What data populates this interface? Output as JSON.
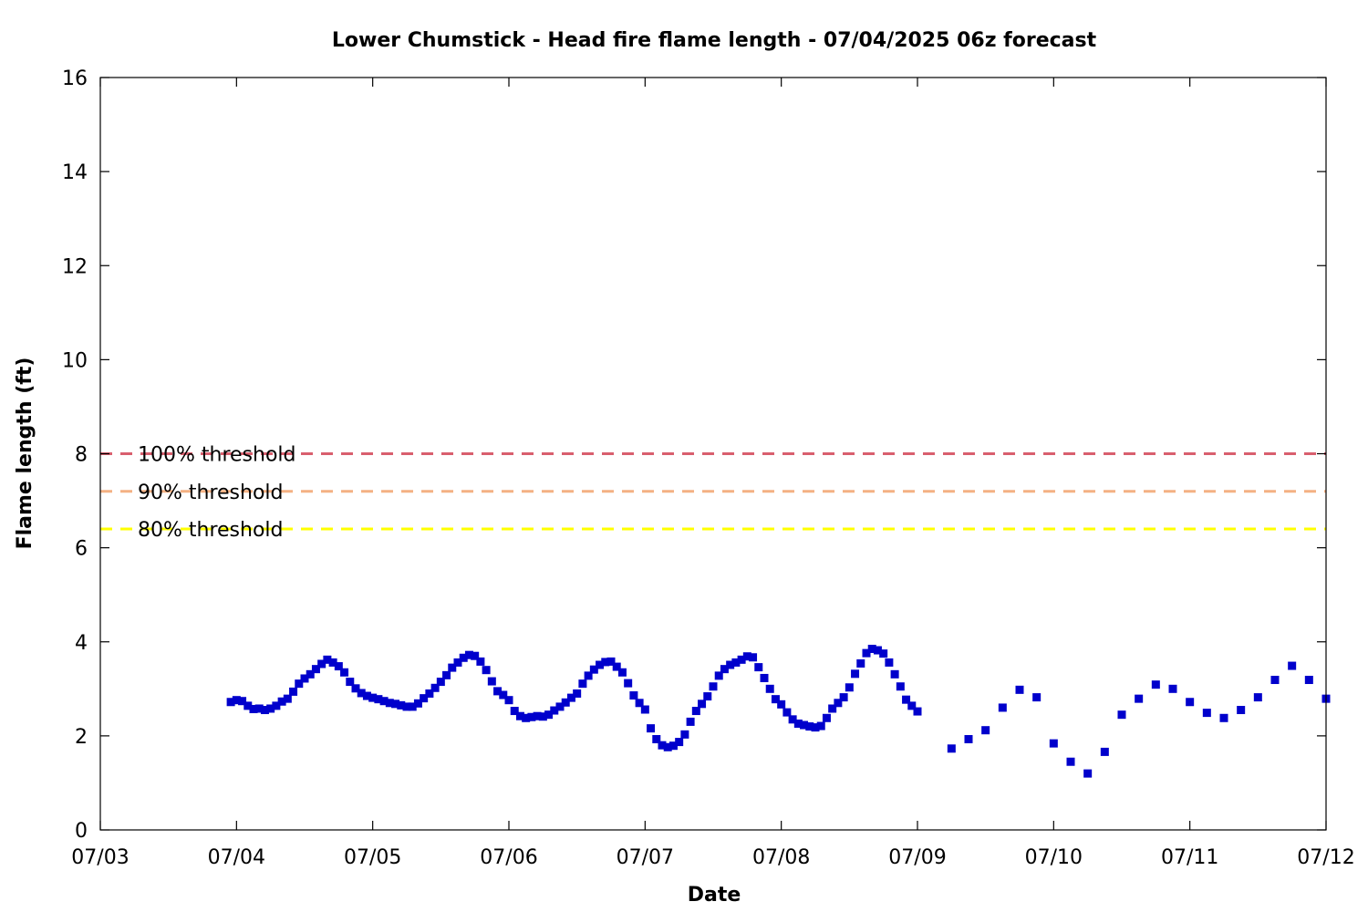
{
  "chart_data": {
    "type": "scatter",
    "title": "Lower Chumstick - Head fire flame length - 07/04/2025 06z forecast",
    "xlabel": "Date",
    "ylabel": "Flame length (ft)",
    "x_ticks": [
      "07/03",
      "07/04",
      "07/05",
      "07/06",
      "07/07",
      "07/08",
      "07/09",
      "07/10",
      "07/11",
      "07/12"
    ],
    "x_range": [
      "07/03",
      "07/12"
    ],
    "ylim": [
      0,
      16
    ],
    "y_ticks": [
      0,
      2,
      4,
      6,
      8,
      10,
      12,
      14,
      16
    ],
    "grid": false,
    "marker_color": "#0000cc",
    "thresholds": [
      {
        "label": "100% threshold",
        "value": 8.0,
        "color": "#d95f6e"
      },
      {
        "label": "90% threshold",
        "value": 7.2,
        "color": "#f4b183"
      },
      {
        "label": "80% threshold",
        "value": 6.4,
        "color": "#ffff00"
      }
    ],
    "series": [
      {
        "points": [
          [
            "07/03 23:00",
            2.72
          ],
          [
            "07/04 00:00",
            2.76
          ],
          [
            "07/04 01:00",
            2.74
          ],
          [
            "07/04 02:00",
            2.64
          ],
          [
            "07/04 03:00",
            2.57
          ],
          [
            "07/04 04:00",
            2.58
          ],
          [
            "07/04 05:00",
            2.55
          ],
          [
            "07/04 06:00",
            2.58
          ],
          [
            "07/04 07:00",
            2.64
          ],
          [
            "07/04 08:00",
            2.73
          ],
          [
            "07/04 09:00",
            2.79
          ],
          [
            "07/04 10:00",
            2.94
          ],
          [
            "07/04 11:00",
            3.11
          ],
          [
            "07/04 12:00",
            3.22
          ],
          [
            "07/04 13:00",
            3.31
          ],
          [
            "07/04 14:00",
            3.42
          ],
          [
            "07/04 15:00",
            3.53
          ],
          [
            "07/04 16:00",
            3.62
          ],
          [
            "07/04 17:00",
            3.56
          ],
          [
            "07/04 18:00",
            3.48
          ],
          [
            "07/04 19:00",
            3.35
          ],
          [
            "07/04 20:00",
            3.15
          ],
          [
            "07/04 21:00",
            3.01
          ],
          [
            "07/04 22:00",
            2.91
          ],
          [
            "07/04 23:00",
            2.85
          ],
          [
            "07/05 00:00",
            2.81
          ],
          [
            "07/05 01:00",
            2.78
          ],
          [
            "07/05 02:00",
            2.74
          ],
          [
            "07/05 03:00",
            2.7
          ],
          [
            "07/05 04:00",
            2.68
          ],
          [
            "07/05 05:00",
            2.65
          ],
          [
            "07/05 06:00",
            2.62
          ],
          [
            "07/05 07:00",
            2.62
          ],
          [
            "07/05 08:00",
            2.69
          ],
          [
            "07/05 09:00",
            2.8
          ],
          [
            "07/05 10:00",
            2.9
          ],
          [
            "07/05 11:00",
            3.02
          ],
          [
            "07/05 12:00",
            3.15
          ],
          [
            "07/05 13:00",
            3.29
          ],
          [
            "07/05 14:00",
            3.45
          ],
          [
            "07/05 15:00",
            3.56
          ],
          [
            "07/05 16:00",
            3.66
          ],
          [
            "07/05 17:00",
            3.72
          ],
          [
            "07/05 18:00",
            3.7
          ],
          [
            "07/05 19:00",
            3.58
          ],
          [
            "07/05 20:00",
            3.4
          ],
          [
            "07/05 21:00",
            3.16
          ],
          [
            "07/05 22:00",
            2.95
          ],
          [
            "07/05 23:00",
            2.87
          ],
          [
            "07/06 00:00",
            2.76
          ],
          [
            "07/06 01:00",
            2.53
          ],
          [
            "07/06 02:00",
            2.42
          ],
          [
            "07/06 03:00",
            2.38
          ],
          [
            "07/06 04:00",
            2.4
          ],
          [
            "07/06 05:00",
            2.42
          ],
          [
            "07/06 06:00",
            2.41
          ],
          [
            "07/06 07:00",
            2.45
          ],
          [
            "07/06 08:00",
            2.54
          ],
          [
            "07/06 09:00",
            2.62
          ],
          [
            "07/06 10:00",
            2.71
          ],
          [
            "07/06 11:00",
            2.81
          ],
          [
            "07/06 12:00",
            2.9
          ],
          [
            "07/06 13:00",
            3.11
          ],
          [
            "07/06 14:00",
            3.28
          ],
          [
            "07/06 15:00",
            3.41
          ],
          [
            "07/06 16:00",
            3.51
          ],
          [
            "07/06 17:00",
            3.57
          ],
          [
            "07/06 18:00",
            3.58
          ],
          [
            "07/06 19:00",
            3.47
          ],
          [
            "07/06 20:00",
            3.35
          ],
          [
            "07/06 21:00",
            3.12
          ],
          [
            "07/06 22:00",
            2.86
          ],
          [
            "07/06 23:00",
            2.7
          ],
          [
            "07/07 00:00",
            2.56
          ],
          [
            "07/07 01:00",
            2.16
          ],
          [
            "07/07 02:00",
            1.93
          ],
          [
            "07/07 03:00",
            1.8
          ],
          [
            "07/07 04:00",
            1.76
          ],
          [
            "07/07 05:00",
            1.79
          ],
          [
            "07/07 06:00",
            1.87
          ],
          [
            "07/07 07:00",
            2.03
          ],
          [
            "07/07 08:00",
            2.3
          ],
          [
            "07/07 09:00",
            2.53
          ],
          [
            "07/07 10:00",
            2.68
          ],
          [
            "07/07 11:00",
            2.84
          ],
          [
            "07/07 12:00",
            3.05
          ],
          [
            "07/07 13:00",
            3.28
          ],
          [
            "07/07 14:00",
            3.42
          ],
          [
            "07/07 15:00",
            3.51
          ],
          [
            "07/07 16:00",
            3.56
          ],
          [
            "07/07 17:00",
            3.62
          ],
          [
            "07/07 18:00",
            3.69
          ],
          [
            "07/07 19:00",
            3.67
          ],
          [
            "07/07 20:00",
            3.46
          ],
          [
            "07/07 21:00",
            3.23
          ],
          [
            "07/07 22:00",
            3.0
          ],
          [
            "07/07 23:00",
            2.78
          ],
          [
            "07/08 00:00",
            2.67
          ],
          [
            "07/08 01:00",
            2.5
          ],
          [
            "07/08 02:00",
            2.35
          ],
          [
            "07/08 03:00",
            2.26
          ],
          [
            "07/08 04:00",
            2.23
          ],
          [
            "07/08 05:00",
            2.2
          ],
          [
            "07/08 06:00",
            2.18
          ],
          [
            "07/08 07:00",
            2.21
          ],
          [
            "07/08 08:00",
            2.38
          ],
          [
            "07/08 09:00",
            2.58
          ],
          [
            "07/08 10:00",
            2.7
          ],
          [
            "07/08 11:00",
            2.82
          ],
          [
            "07/08 12:00",
            3.03
          ],
          [
            "07/08 13:00",
            3.32
          ],
          [
            "07/08 14:00",
            3.54
          ],
          [
            "07/08 15:00",
            3.76
          ],
          [
            "07/08 16:00",
            3.85
          ],
          [
            "07/08 17:00",
            3.82
          ],
          [
            "07/08 18:00",
            3.75
          ],
          [
            "07/08 19:00",
            3.56
          ],
          [
            "07/08 20:00",
            3.31
          ],
          [
            "07/08 21:00",
            3.05
          ],
          [
            "07/08 22:00",
            2.77
          ],
          [
            "07/08 23:00",
            2.64
          ],
          [
            "07/09 00:00",
            2.52
          ],
          [
            "07/09 06:00",
            1.73
          ],
          [
            "07/09 09:00",
            1.93
          ],
          [
            "07/09 12:00",
            2.12
          ],
          [
            "07/09 15:00",
            2.6
          ],
          [
            "07/09 18:00",
            2.98
          ],
          [
            "07/09 21:00",
            2.82
          ],
          [
            "07/10 00:00",
            1.84
          ],
          [
            "07/10 03:00",
            1.45
          ],
          [
            "07/10 06:00",
            1.2
          ],
          [
            "07/10 09:00",
            1.66
          ],
          [
            "07/10 12:00",
            2.45
          ],
          [
            "07/10 15:00",
            2.79
          ],
          [
            "07/10 18:00",
            3.09
          ],
          [
            "07/10 21:00",
            3.0
          ],
          [
            "07/11 00:00",
            2.72
          ],
          [
            "07/11 03:00",
            2.49
          ],
          [
            "07/11 06:00",
            2.38
          ],
          [
            "07/11 09:00",
            2.55
          ],
          [
            "07/11 12:00",
            2.82
          ],
          [
            "07/11 15:00",
            3.19
          ],
          [
            "07/11 18:00",
            3.49
          ],
          [
            "07/11 21:00",
            3.19
          ],
          [
            "07/12 00:00",
            2.79
          ]
        ]
      }
    ]
  }
}
